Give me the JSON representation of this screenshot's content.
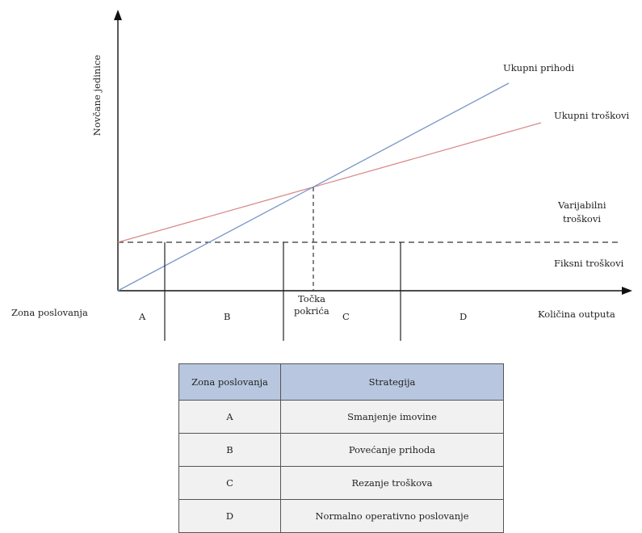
{
  "diagram": {
    "y_axis_label": "Novčane jedinice",
    "x_axis_label": "Količina outputa",
    "zone_axis_label": "Zona poslovanja",
    "lines": {
      "total_revenue": {
        "label": "Ukupni prihodi",
        "color": "#7b96c8"
      },
      "total_cost": {
        "label": "Ukupni troškovi",
        "color": "#d98b8b"
      },
      "fixed_cost": {
        "label": "Fiksni troškovi",
        "color": "#333333"
      }
    },
    "variable_cost_label": [
      "Varijabilni",
      "troškovi"
    ],
    "break_even_label": [
      "Točka",
      "pokrića"
    ],
    "zones": [
      "A",
      "B",
      "C",
      "D"
    ]
  },
  "table": {
    "headers": [
      "Zona poslovanja",
      "Strategija"
    ],
    "rows": [
      {
        "zone": "A",
        "strategy": "Smanjenje imovine"
      },
      {
        "zone": "B",
        "strategy": "Povećanje prihoda"
      },
      {
        "zone": "C",
        "strategy": "Rezanje troškova"
      },
      {
        "zone": "D",
        "strategy": "Normalno operativno poslovanje"
      }
    ]
  }
}
